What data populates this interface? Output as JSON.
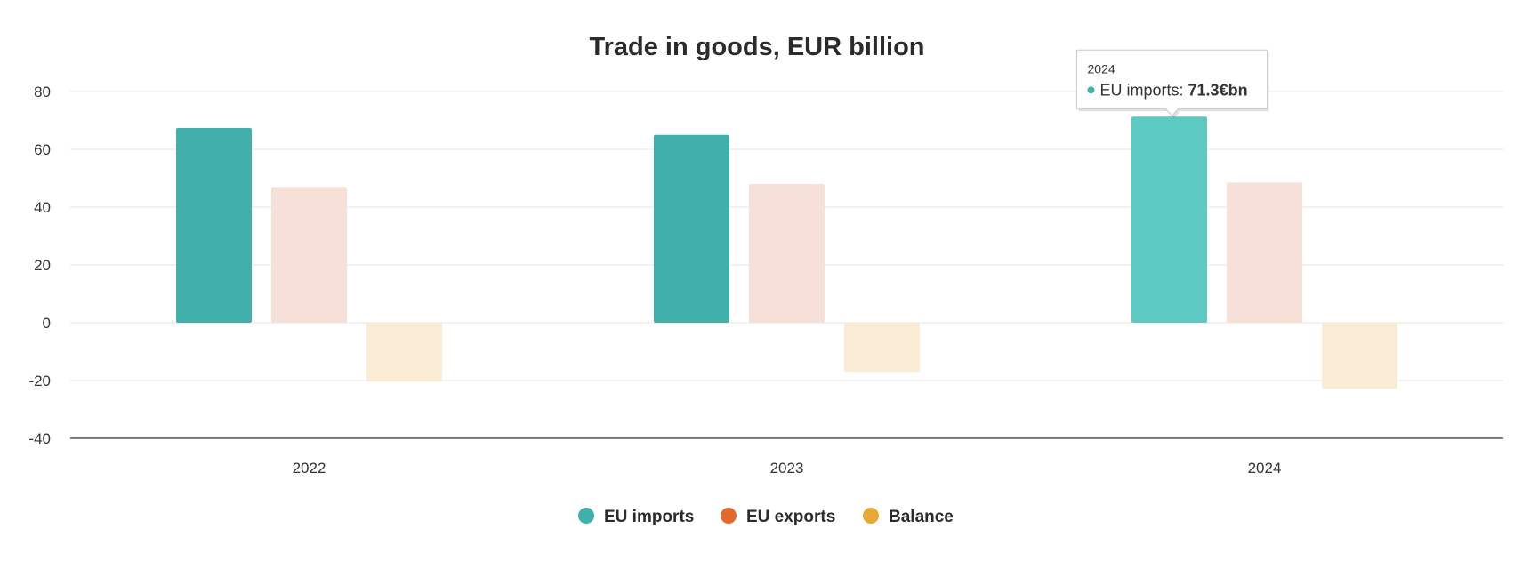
{
  "chart_data": {
    "type": "bar",
    "title": "Trade in goods, EUR billion",
    "categories": [
      "2022",
      "2023",
      "2024"
    ],
    "ylim": [
      -40,
      80
    ],
    "yticks": [
      "80",
      "60",
      "40",
      "20",
      "0",
      "-20",
      "-40"
    ],
    "grid": true,
    "legend_position": "bottom-center",
    "series": [
      {
        "name": "EU imports",
        "values": [
          67.4,
          65.0,
          71.3
        ],
        "color": "#42b0aa"
      },
      {
        "name": "EU exports",
        "values": [
          47.0,
          48.0,
          48.5
        ],
        "color": "#e06a2e"
      },
      {
        "name": "Balance",
        "values": [
          -20.4,
          -17.0,
          -22.8
        ],
        "color": "#e8a838"
      }
    ],
    "tooltip": {
      "header": "2024",
      "series_name": "EU imports: ",
      "value_text": "71.3€bn"
    }
  }
}
